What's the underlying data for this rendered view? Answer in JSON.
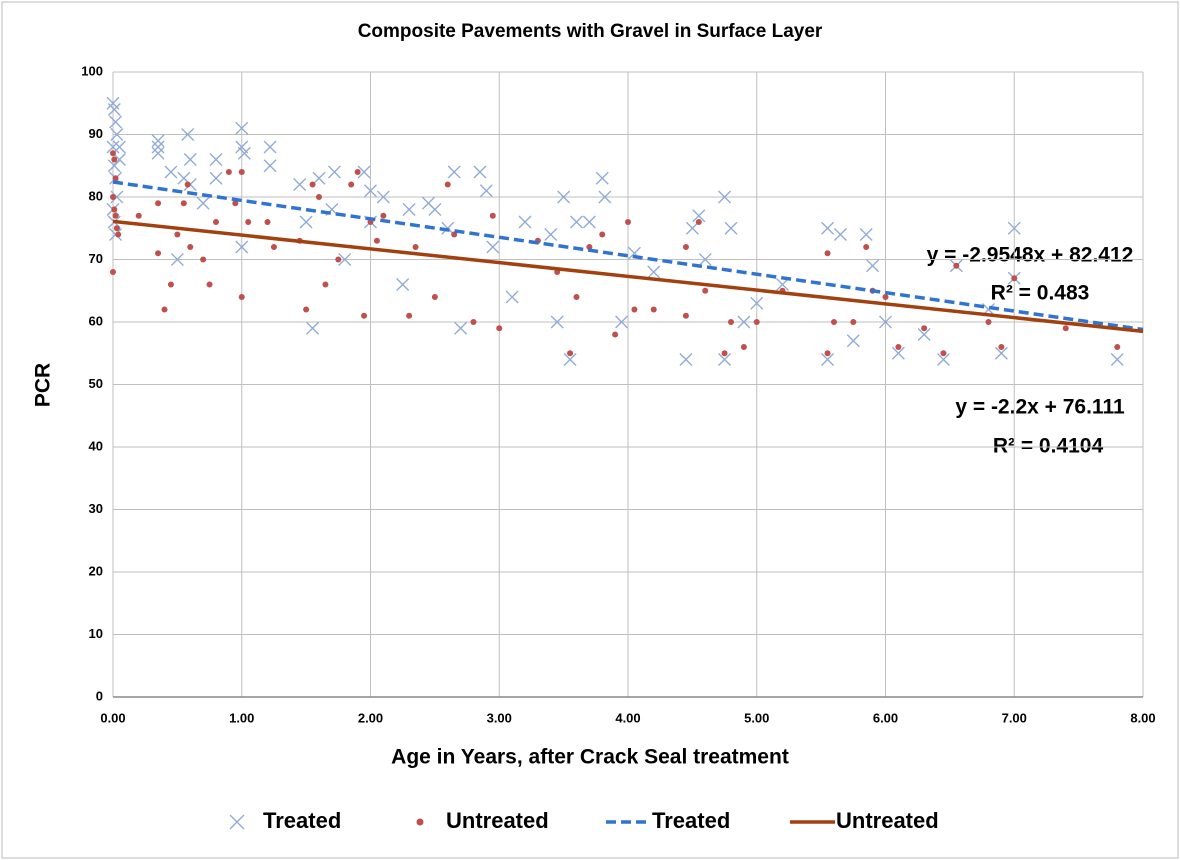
{
  "chart_data": {
    "type": "scatter",
    "title": "Composite Pavements with Gravel in Surface Layer",
    "xlabel": "Age in Years, after Crack Seal treatment",
    "ylabel": "PCR",
    "xlim": [
      0,
      8
    ],
    "ylim": [
      0,
      100
    ],
    "xticks": [
      {
        "value": 0,
        "label": "0.00"
      },
      {
        "value": 1,
        "label": "1.00"
      },
      {
        "value": 2,
        "label": "2.00"
      },
      {
        "value": 3,
        "label": "3.00"
      },
      {
        "value": 4,
        "label": "4.00"
      },
      {
        "value": 5,
        "label": "5.00"
      },
      {
        "value": 6,
        "label": "6.00"
      },
      {
        "value": 7,
        "label": "7.00"
      },
      {
        "value": 8,
        "label": "8.00"
      }
    ],
    "yticks": [
      0,
      10,
      20,
      30,
      40,
      50,
      60,
      70,
      80,
      90,
      100
    ],
    "grid": true,
    "legend": "bottom",
    "annotations": [
      "y = -2.9548x + 82.412",
      "R² = 0.483",
      "y = -2.2x + 76.111",
      "R² = 0.4104"
    ],
    "series": [
      {
        "name": "Treated",
        "mode": "markers",
        "marker": "x",
        "color": "#8eaad6",
        "x": [
          0,
          0.01,
          0.02,
          0.03,
          0,
          0.01,
          0.02,
          0.03,
          0,
          0.01,
          0.02,
          0.05,
          0.05,
          0.35,
          0.35,
          0.35,
          0.45,
          0.5,
          0.55,
          0.58,
          0.6,
          0.6,
          0.7,
          0.8,
          0.8,
          1.0,
          1.0,
          1.02,
          1.0,
          1.22,
          1.22,
          1.45,
          1.5,
          1.55,
          1.6,
          1.7,
          1.72,
          1.8,
          1.95,
          2.0,
          2.0,
          2.1,
          2.25,
          2.3,
          2.45,
          2.5,
          2.6,
          2.65,
          2.7,
          2.85,
          2.9,
          2.95,
          3.1,
          3.2,
          3.4,
          3.45,
          3.5,
          3.55,
          3.6,
          3.7,
          3.8,
          3.82,
          3.95,
          4.05,
          4.2,
          4.45,
          4.5,
          4.55,
          4.6,
          4.75,
          4.75,
          4.8,
          4.9,
          5.0,
          5.2,
          5.55,
          5.55,
          5.65,
          5.75,
          5.85,
          5.9,
          6.0,
          6.1,
          6.3,
          6.45,
          6.55,
          6.8,
          6.9,
          7.0,
          7.0,
          7.8
        ],
        "values": [
          95,
          94,
          92,
          90,
          88,
          85,
          83,
          80,
          78,
          76,
          74,
          88,
          86,
          89,
          88,
          87,
          84,
          70,
          83,
          90,
          86,
          82,
          79,
          86,
          83,
          91,
          88,
          87,
          72,
          88,
          85,
          82,
          76,
          59,
          83,
          78,
          84,
          70,
          84,
          81,
          76,
          80,
          66,
          78,
          79,
          78,
          75,
          84,
          59,
          84,
          81,
          72,
          64,
          76,
          74,
          60,
          80,
          54,
          76,
          76,
          83,
          80,
          60,
          71,
          68,
          54,
          75,
          77,
          70,
          80,
          54,
          75,
          60,
          63,
          66,
          54,
          75,
          74,
          57,
          74,
          69,
          60,
          55,
          58,
          54,
          69,
          62,
          55,
          75,
          67,
          54
        ]
      },
      {
        "name": "Untreated",
        "mode": "markers",
        "marker": "dot",
        "color": "#c0504d",
        "x": [
          0,
          0.01,
          0.02,
          0,
          0.01,
          0.02,
          0.03,
          0.04,
          0,
          0.2,
          0.35,
          0.35,
          0.4,
          0.45,
          0.5,
          0.55,
          0.58,
          0.6,
          0.7,
          0.75,
          0.8,
          0.9,
          0.95,
          1.0,
          1.0,
          1.05,
          1.2,
          1.25,
          1.45,
          1.5,
          1.55,
          1.6,
          1.65,
          1.75,
          1.85,
          1.9,
          1.95,
          2.0,
          2.05,
          2.1,
          2.3,
          2.35,
          2.5,
          2.6,
          2.65,
          2.8,
          2.95,
          3.0,
          3.3,
          3.45,
          3.55,
          3.6,
          3.7,
          3.8,
          3.9,
          4.0,
          4.05,
          4.2,
          4.45,
          4.45,
          4.55,
          4.6,
          4.75,
          4.8,
          4.9,
          5.0,
          5.2,
          5.55,
          5.55,
          5.6,
          5.75,
          5.85,
          5.9,
          6.0,
          6.1,
          6.3,
          6.45,
          6.55,
          6.8,
          6.9,
          7.0,
          7.4,
          7.8
        ],
        "values": [
          87,
          86,
          83,
          80,
          78,
          77,
          75,
          74,
          68,
          77,
          79,
          71,
          62,
          66,
          74,
          79,
          82,
          72,
          70,
          66,
          76,
          84,
          79,
          84,
          64,
          76,
          76,
          72,
          73,
          62,
          82,
          80,
          66,
          70,
          82,
          84,
          61,
          76,
          73,
          77,
          61,
          72,
          64,
          82,
          74,
          60,
          77,
          59,
          73,
          68,
          55,
          64,
          72,
          74,
          58,
          76,
          62,
          62,
          72,
          61,
          76,
          65,
          55,
          60,
          56,
          60,
          65,
          55,
          71,
          60,
          60,
          72,
          65,
          64,
          56,
          59,
          55,
          69,
          60,
          56,
          67,
          59,
          56
        ]
      },
      {
        "name": "Treated",
        "mode": "line",
        "dash": true,
        "color": "#2f74d0",
        "x": [
          0,
          8
        ],
        "values": [
          82.4,
          58.8
        ]
      },
      {
        "name": "Untreated",
        "mode": "line",
        "dash": false,
        "color": "#a3400f",
        "x": [
          0,
          8
        ],
        "values": [
          76.1,
          58.5
        ]
      }
    ]
  }
}
